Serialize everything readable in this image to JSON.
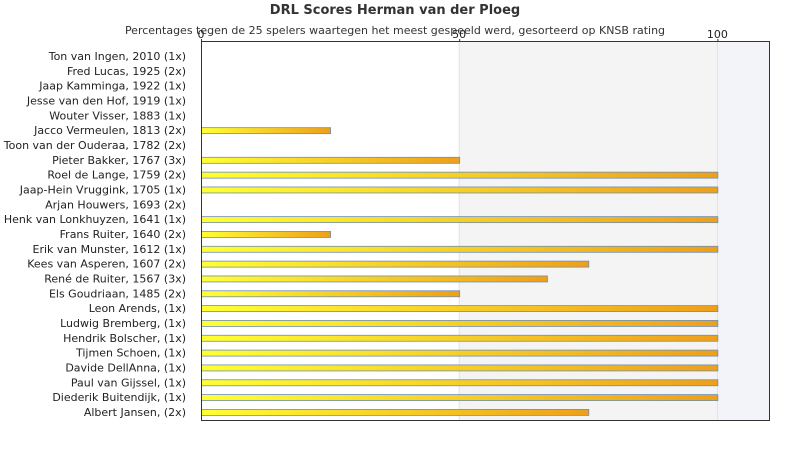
{
  "chart_data": {
    "type": "bar",
    "orientation": "horizontal",
    "title": "DRL Scores Herman van der Ploeg",
    "subtitle": "Percentages tegen de 25 spelers waartegen het meest gespeeld werd, gesorteerd op KNSB rating",
    "categories": [
      "Ton van Ingen, 2010 (1x)",
      "Fred Lucas, 1925 (2x)",
      "Jaap Kamminga, 1922 (1x)",
      "Jesse van den Hof, 1919 (1x)",
      "Wouter Visser, 1883 (1x)",
      "Jacco Vermeulen, 1813 (2x)",
      "Toon van der Ouderaa, 1782 (2x)",
      "Pieter Bakker, 1767 (3x)",
      "Roel de Lange, 1759 (2x)",
      "Jaap-Hein Vruggink, 1705 (1x)",
      "Arjan Houwers, 1693 (2x)",
      "Henk van Lonkhuyzen, 1641 (1x)",
      "Frans Ruiter, 1640 (2x)",
      "Erik van Munster, 1612 (1x)",
      "Kees van Asperen, 1607 (2x)",
      "René de Ruiter, 1567 (3x)",
      "Els Goudriaan, 1485 (2x)",
      "Leon Arends,  (1x)",
      "Ludwig Bremberg,  (1x)",
      "Hendrik Bolscher,  (1x)",
      "Tijmen Schoen,  (1x)",
      "Davide DellAnna,  (1x)",
      "Paul van Gijssel,  (1x)",
      "Diederik Buitendijk,  (1x)",
      "Albert Jansen,  (2x)"
    ],
    "values": [
      0,
      0,
      0,
      0,
      0,
      25,
      0,
      50,
      100,
      100,
      0,
      100,
      25,
      100,
      75,
      67,
      50,
      100,
      100,
      100,
      100,
      100,
      100,
      100,
      75
    ],
    "xlim": [
      0,
      110
    ],
    "xticks": [
      0,
      50,
      100
    ],
    "tick_position": "top",
    "grid": false,
    "legend": "none",
    "colors": {
      "bar_start": "#ffff33",
      "bar_end": "#ee9f1a",
      "bar_border": "#6f8fb0",
      "band_light": "#f4f4f4",
      "band_right": "#f3f4fa",
      "axis": "#333333"
    }
  }
}
